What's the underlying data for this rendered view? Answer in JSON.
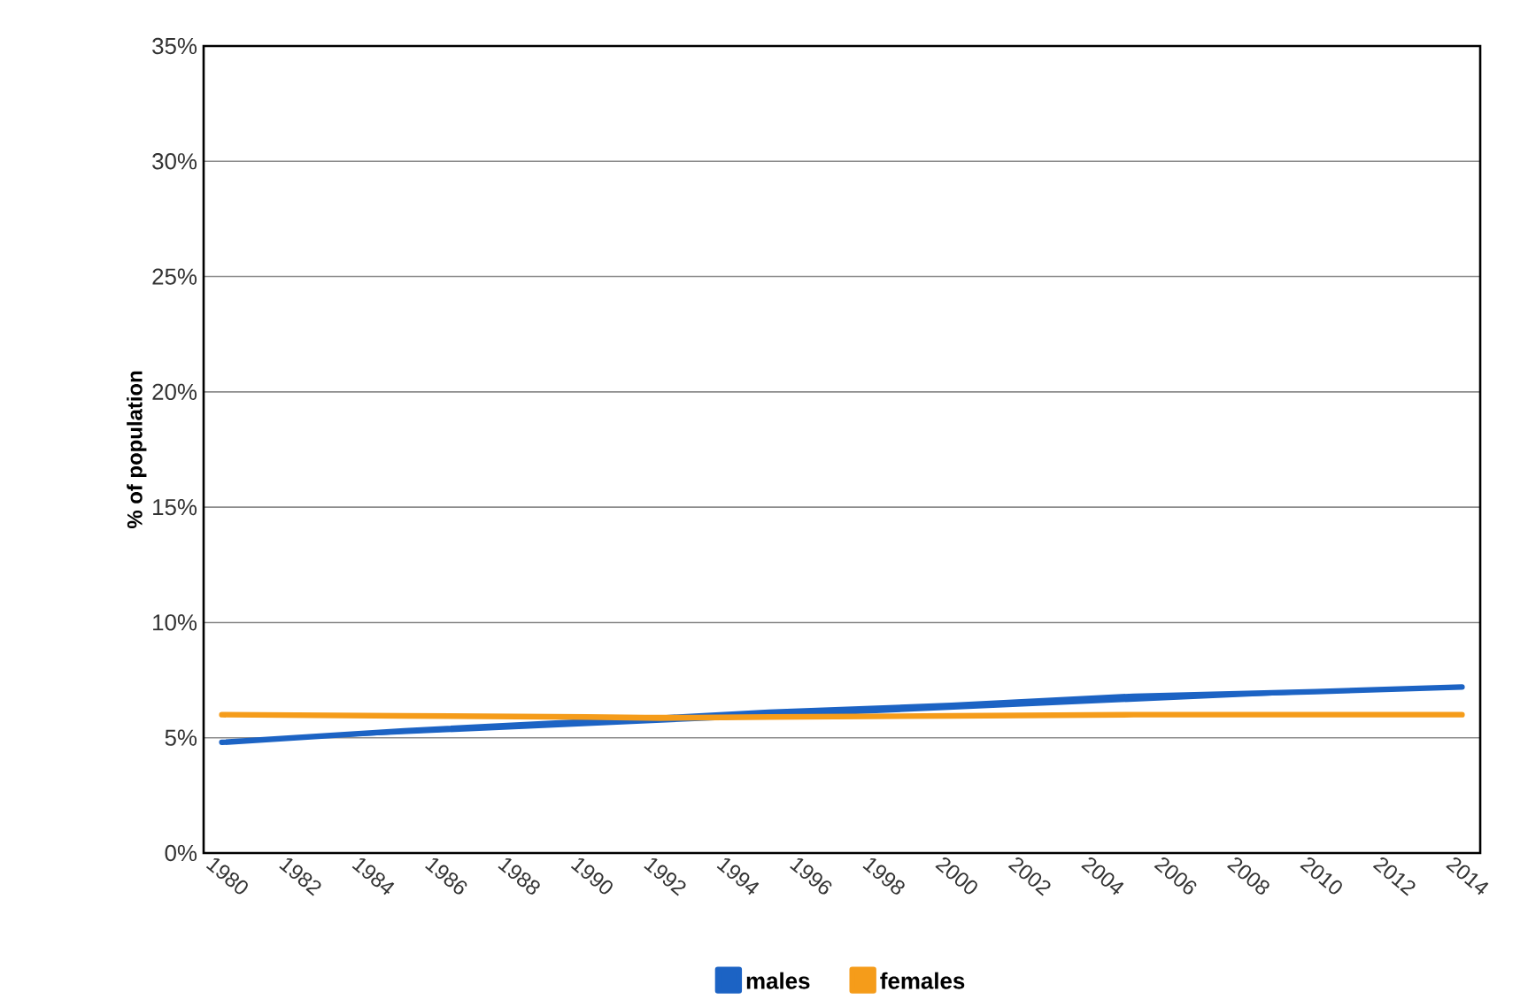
{
  "chart_data": {
    "type": "line",
    "ylabel": "% of population",
    "x": [
      1980,
      1985,
      1990,
      1992,
      1995,
      2000,
      2005,
      2010,
      2014
    ],
    "series": [
      {
        "name": "males",
        "color": "#1c63c4",
        "values": [
          4.8,
          5.3,
          5.7,
          5.85,
          6.1,
          6.4,
          6.8,
          7.0,
          7.2
        ]
      },
      {
        "name": "females",
        "color": "#f59c1a",
        "values": [
          6.0,
          5.95,
          5.9,
          5.85,
          5.9,
          5.95,
          6.0,
          6.0,
          6.0
        ]
      }
    ],
    "xlim": [
      1979.5,
      2014.5
    ],
    "xticks": [
      1980,
      1982,
      1984,
      1986,
      1988,
      1990,
      1992,
      1994,
      1996,
      1998,
      2000,
      2002,
      2004,
      2006,
      2008,
      2010,
      2012,
      2014
    ],
    "ylim": [
      0,
      35
    ],
    "yticks": [
      {
        "value": 0,
        "label": "0%"
      },
      {
        "value": 5,
        "label": "5%"
      },
      {
        "value": 10,
        "label": "10%"
      },
      {
        "value": 15,
        "label": "15%"
      },
      {
        "value": 20,
        "label": "20%"
      },
      {
        "value": 25,
        "label": "25%"
      },
      {
        "value": 30,
        "label": "30%"
      },
      {
        "value": 35,
        "label": "35%"
      }
    ],
    "grid": "y",
    "legend": "bottom",
    "marker": "none",
    "line_style": "solid"
  }
}
